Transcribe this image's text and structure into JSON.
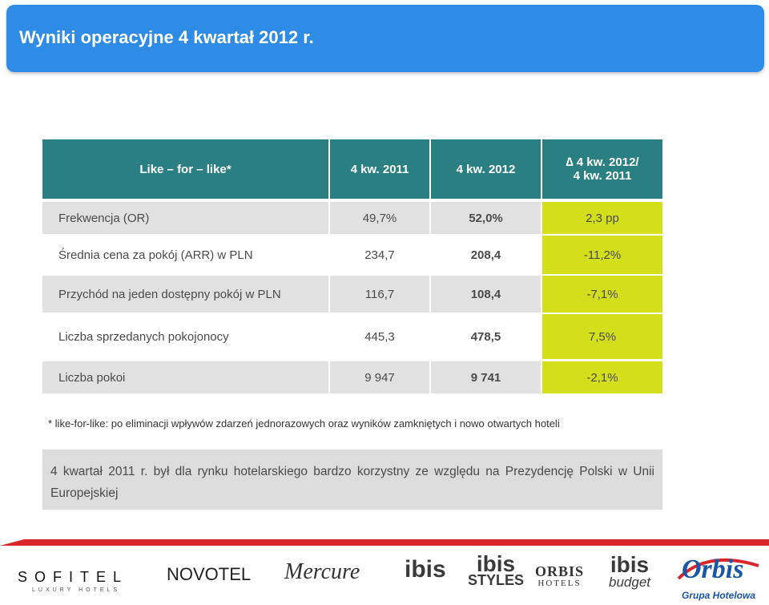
{
  "title": "Wyniki operacyjne 4 kwartał 2012 r.",
  "table": {
    "headers": {
      "label": "Like – for – like*",
      "col2": "4 kw. 2011",
      "col3": "4 kw. 2012",
      "col4_line1": "∆ 4 kw. 2012/",
      "col4_line2": "4 kw. 2011"
    },
    "rows": [
      {
        "label": "Frekwencja (OR)",
        "v2011": "49,7%",
        "v2012": "52,0%",
        "delta": "2,3 pp"
      },
      {
        "label": "Średnia cena za pokój (ARR) w PLN",
        "v2011": "234,7",
        "v2012": "208,4",
        "delta": "-11,2%"
      },
      {
        "label": "Przychód na jeden dostępny pokój  w PLN",
        "v2011": "116,7",
        "v2012": "108,4",
        "delta": "-7,1%"
      },
      {
        "label": "Liczba sprzedanych pokojonocy",
        "v2011": "445,3",
        "v2012": "478,5",
        "delta": "7,5%"
      },
      {
        "label": "Liczba pokoi",
        "v2011": "9 947",
        "v2012": "9 741",
        "delta": "-2,1%"
      }
    ]
  },
  "footnote": "* like-for-like: po eliminacji wpływów zdarzeń jednorazowych oraz wyników zamkniętych i nowo otwartych hoteli",
  "note": "4 kwartał 2011 r. był dla rynku hotelarskiego bardzo korzystny ze względu na Prezydencję Polski w Unii Europejskiej",
  "colors": {
    "title_bar": "#2f8ce6",
    "header": "#2a7f83",
    "delta_column": "#d4df1c",
    "row_gray": "#e1e1e1",
    "accent_red": "#d9262b"
  },
  "logos": {
    "sofitel_main": "SOFITEL",
    "sofitel_sub": "LUXURY HOTELS",
    "novotel": "NOVOTEL",
    "mercure": "Mercure",
    "ibis": "ibis",
    "ibis_styles_a": "ibis",
    "ibis_styles_b": "STYLES",
    "orbis_hotels_a": "ORBIS",
    "orbis_hotels_b": "HOTELS",
    "ibis_budget_a": "ibis",
    "ibis_budget_b": "budget",
    "orbis_a": "Orbis",
    "orbis_b": "Grupa Hotelowa"
  }
}
